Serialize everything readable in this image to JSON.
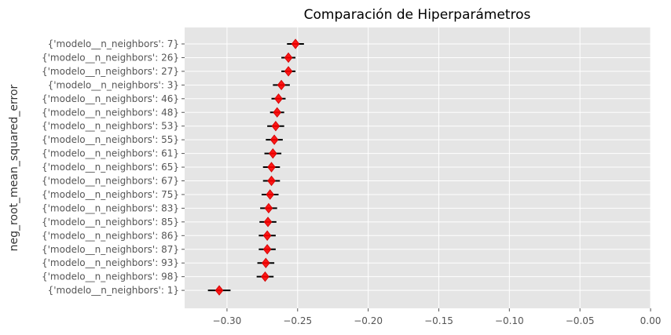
{
  "chart_data": {
    "type": "scatter",
    "title": "Comparación de Hiperparámetros",
    "xlabel": "",
    "ylabel": "neg_root_mean_squared_error",
    "xlim": [
      -0.33,
      0.0
    ],
    "x_ticks": [
      -0.3,
      -0.25,
      -0.2,
      -0.15,
      -0.1,
      -0.05,
      0.0
    ],
    "x_tick_labels": [
      "−0.30",
      "−0.25",
      "−0.20",
      "−0.15",
      "−0.10",
      "−0.05",
      "0.00"
    ],
    "grid": true,
    "marker": "diamond",
    "errorbars": true,
    "colors": {
      "background": "#E5E5E5",
      "grid": "#FFFFFF",
      "marker": "#FF0000",
      "errorbar": "#000000"
    },
    "categories": [
      "{'modelo__n_neighbors': 7}",
      "{'modelo__n_neighbors': 26}",
      "{'modelo__n_neighbors': 27}",
      "{'modelo__n_neighbors': 3}",
      "{'modelo__n_neighbors': 46}",
      "{'modelo__n_neighbors': 48}",
      "{'modelo__n_neighbors': 53}",
      "{'modelo__n_neighbors': 55}",
      "{'modelo__n_neighbors': 61}",
      "{'modelo__n_neighbors': 65}",
      "{'modelo__n_neighbors': 67}",
      "{'modelo__n_neighbors': 75}",
      "{'modelo__n_neighbors': 83}",
      "{'modelo__n_neighbors': 85}",
      "{'modelo__n_neighbors': 86}",
      "{'modelo__n_neighbors': 87}",
      "{'modelo__n_neighbors': 93}",
      "{'modelo__n_neighbors': 98}",
      "{'modelo__n_neighbors': 1}"
    ],
    "values": [
      -0.2515,
      -0.2565,
      -0.2565,
      -0.2615,
      -0.2635,
      -0.2645,
      -0.2655,
      -0.2665,
      -0.2675,
      -0.2685,
      -0.2685,
      -0.2695,
      -0.2705,
      -0.271,
      -0.2715,
      -0.2715,
      -0.2725,
      -0.273,
      -0.3055
    ],
    "errors": [
      0.006,
      0.005,
      0.005,
      0.006,
      0.005,
      0.005,
      0.006,
      0.006,
      0.006,
      0.006,
      0.006,
      0.006,
      0.006,
      0.006,
      0.006,
      0.006,
      0.006,
      0.006,
      0.008
    ]
  }
}
